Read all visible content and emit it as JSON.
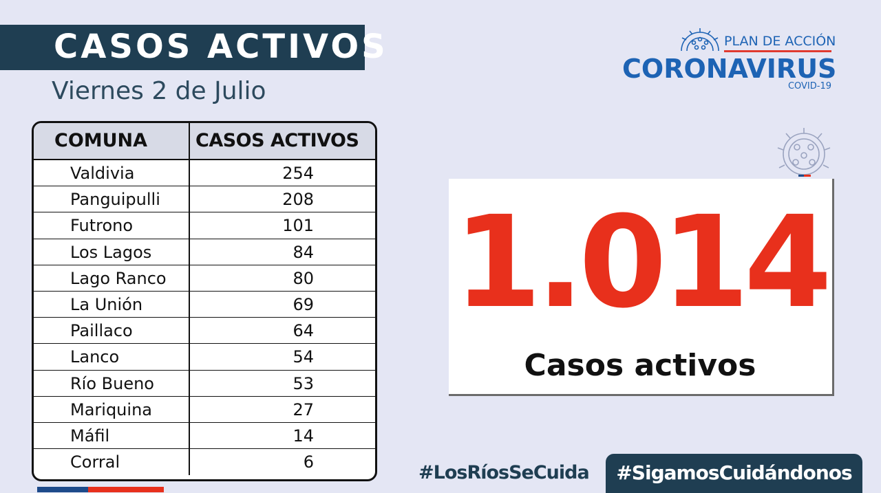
{
  "header": {
    "title": "CASOS ACTIVOS",
    "date": "Viernes 2 de Julio"
  },
  "logo": {
    "plan": "PLAN DE ACCIÓN",
    "main": "CORONAVIRUS",
    "sub": "COVID-19"
  },
  "table": {
    "columns": [
      "COMUNA",
      "CASOS ACTIVOS"
    ],
    "rows": [
      {
        "comuna": "Valdivia",
        "casos": "254"
      },
      {
        "comuna": "Panguipulli",
        "casos": "208"
      },
      {
        "comuna": "Futrono",
        "casos": "101"
      },
      {
        "comuna": "Los Lagos",
        "casos": "84"
      },
      {
        "comuna": "Lago Ranco",
        "casos": "80"
      },
      {
        "comuna": "La Unión",
        "casos": "69"
      },
      {
        "comuna": "Paillaco",
        "casos": "64"
      },
      {
        "comuna": "Lanco",
        "casos": "54"
      },
      {
        "comuna": "Río Bueno",
        "casos": "53"
      },
      {
        "comuna": "Mariquina",
        "casos": "27"
      },
      {
        "comuna": "Máfil",
        "casos": "14"
      },
      {
        "comuna": "Corral",
        "casos": "6"
      }
    ]
  },
  "summary": {
    "total": "1.014",
    "label": "Casos activos"
  },
  "footer": {
    "hashtag_primary": "#LosRíosSeCuida",
    "hashtag_secondary": "#SigamosCuidándonos"
  },
  "colors": {
    "navy": "#1f3e52",
    "brand_blue": "#1d63b4",
    "accent_red": "#e8301c",
    "background": "#e4e6f4"
  },
  "icons": [
    "virus-logo-icon",
    "virus-decoration-icon"
  ]
}
